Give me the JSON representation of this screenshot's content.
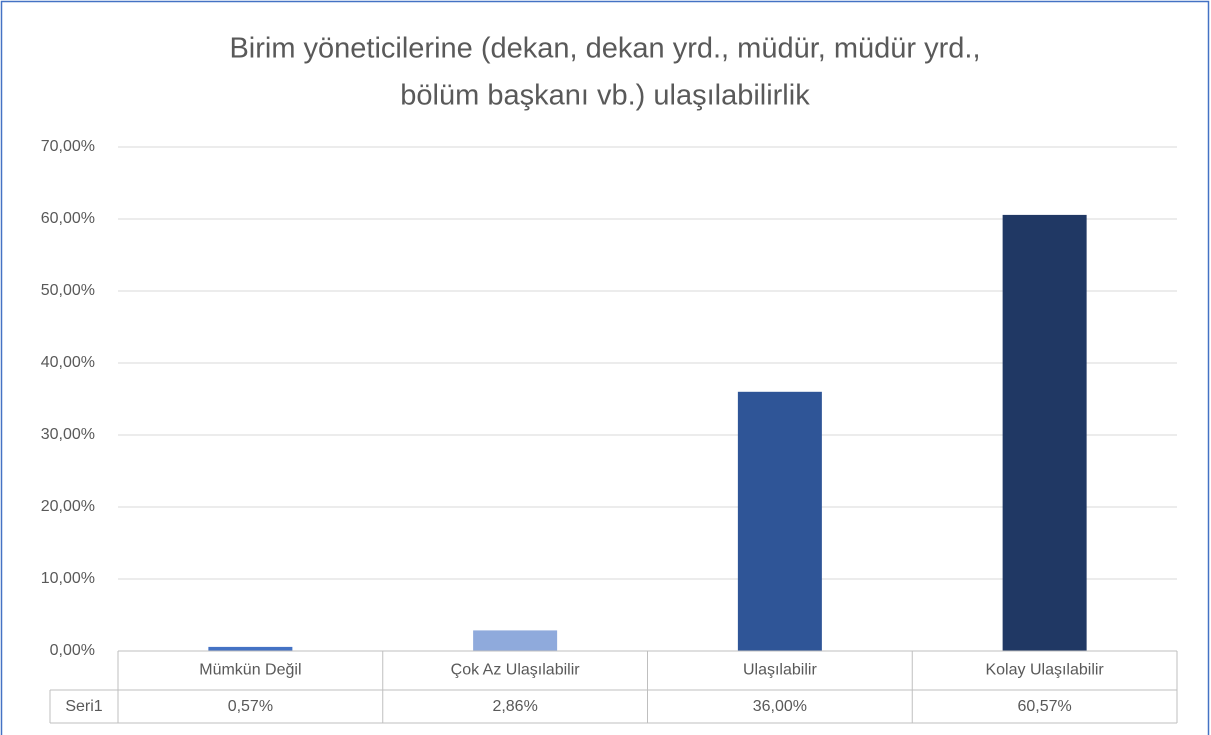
{
  "chart_data": {
    "type": "bar",
    "title": [
      "Birim yöneticilerine (dekan, dekan yrd., müdür, müdür yrd.,",
      "bölüm başkanı vb.) ulaşılabilirlik"
    ],
    "categories": [
      "Mümkün Değil",
      "Çok Az Ulaşılabilir",
      "Ulaşılabilir",
      "Kolay Ulaşılabilir"
    ],
    "series": [
      {
        "name": "Seri1",
        "values": [
          0.57,
          2.86,
          36.0,
          60.57
        ],
        "value_labels": [
          "0,57%",
          "2,86%",
          "36,00%",
          "60,57%"
        ]
      }
    ],
    "colors": [
      "#4472c4",
      "#8faadc",
      "#2f5597",
      "#203864"
    ],
    "ylim": [
      0,
      70
    ],
    "yticks": [
      {
        "value": 0,
        "label": "0,00%"
      },
      {
        "value": 10,
        "label": "10,00%"
      },
      {
        "value": 20,
        "label": "20,00%"
      },
      {
        "value": 30,
        "label": "30,00%"
      },
      {
        "value": 40,
        "label": "40,00%"
      },
      {
        "value": 50,
        "label": "50,00%"
      },
      {
        "value": 60,
        "label": "60,00%"
      },
      {
        "value": 70,
        "label": "70,00%"
      }
    ],
    "grid": true,
    "data_table": true
  }
}
